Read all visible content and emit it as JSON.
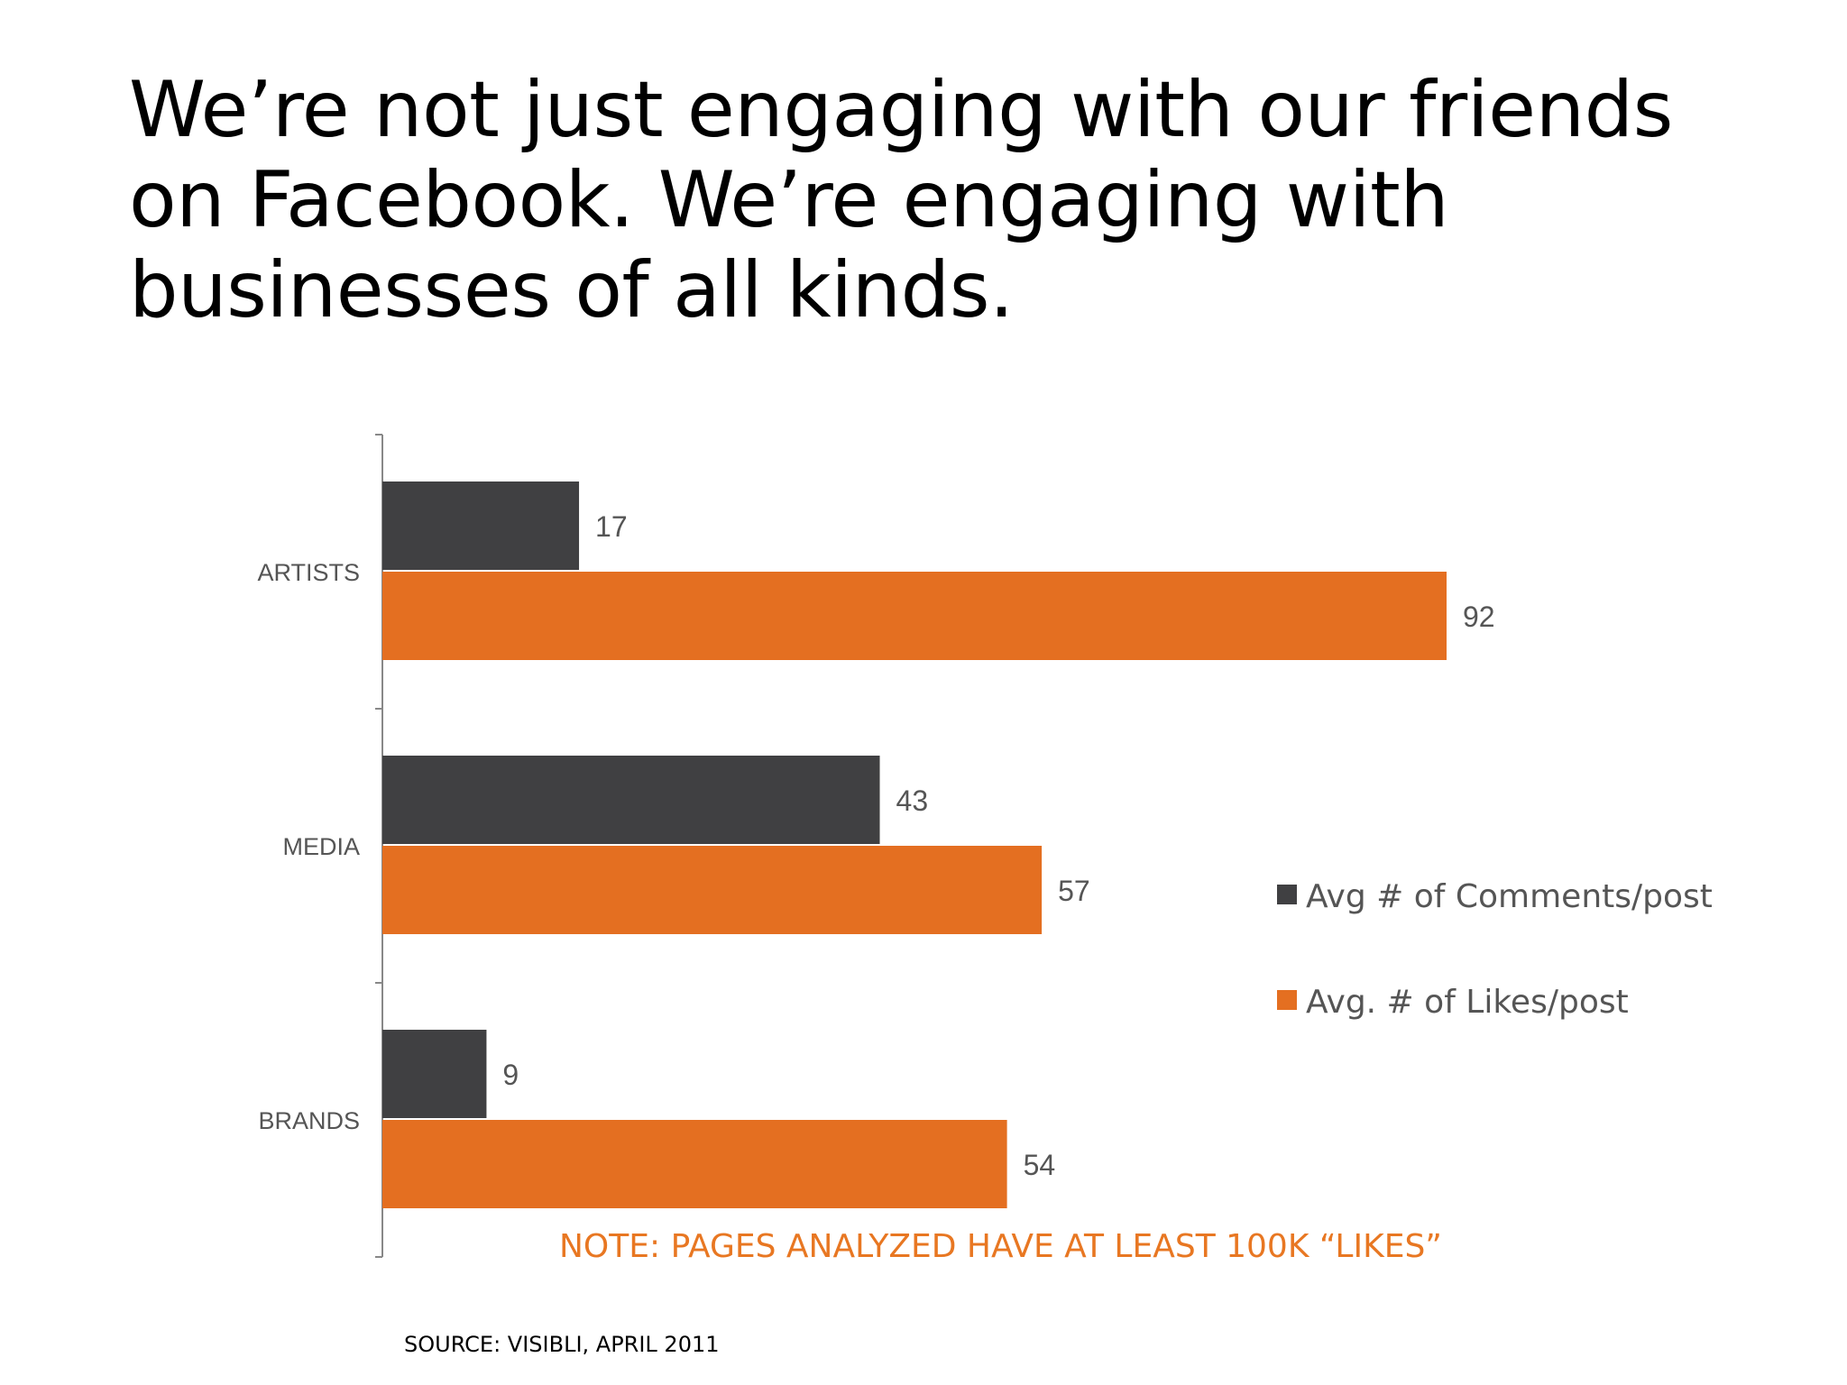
{
  "title_lines": [
    "We’re not just engaging with our friends",
    "on Facebook. We’re engaging with",
    "businesses of all kinds."
  ],
  "note": "NOTE: PAGES ANALYZED HAVE AT LEAST 100K “LIKES”",
  "source": "SOURCE: VISIBLI, APRIL 2011",
  "colors": {
    "comments": "#404042",
    "likes": "#e46f21",
    "note": "#e87722",
    "axis": "#888888"
  },
  "chart_data": {
    "type": "bar",
    "orientation": "horizontal",
    "categories": [
      "ARTISTS",
      "MEDIA",
      "BRANDS"
    ],
    "series": [
      {
        "name": "Avg # of Comments/post",
        "values": [
          17,
          43,
          9
        ]
      },
      {
        "name": "Avg. # of Likes/post",
        "values": [
          92,
          57,
          54
        ]
      }
    ],
    "data_labels": true,
    "grid": false,
    "legend_position": "right"
  }
}
